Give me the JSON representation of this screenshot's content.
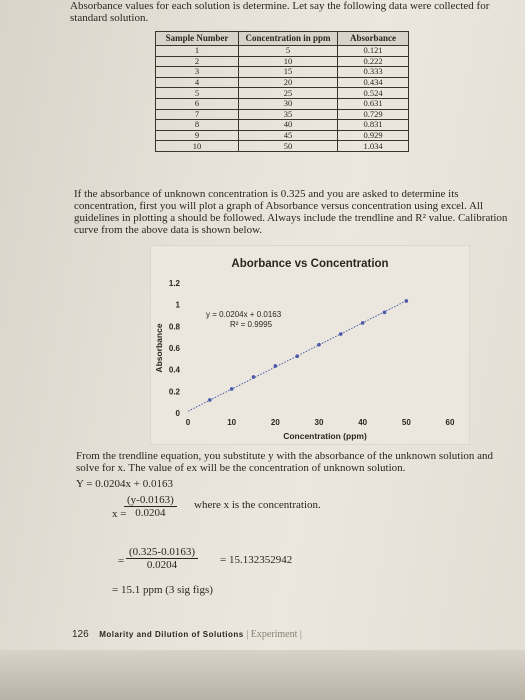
{
  "intro": {
    "line1": "Absorbance values for each solution is determine. Let say the following data were collected for",
    "line2": "standard solution."
  },
  "table": {
    "headers": [
      "Sample Number",
      "Concentration in ppm",
      "Absorbance"
    ],
    "rows": [
      [
        "1",
        "5",
        "0.121"
      ],
      [
        "2",
        "10",
        "0.222"
      ],
      [
        "3",
        "15",
        "0.333"
      ],
      [
        "4",
        "20",
        "0.434"
      ],
      [
        "5",
        "25",
        "0.524"
      ],
      [
        "6",
        "30",
        "0.631"
      ],
      [
        "7",
        "35",
        "0.729"
      ],
      [
        "8",
        "40",
        "0.831"
      ],
      [
        "9",
        "45",
        "0.929"
      ],
      [
        "10",
        "50",
        "1.034"
      ]
    ]
  },
  "paragraph": {
    "line1": "If the absorbance of unknown concentration is 0.325 and you are asked to determine its",
    "line2": "concentration, first you will plot a graph of Absorbance versus concentration using excel. All",
    "line3": "guidelines in plotting a should be followed. Always include the trendline and R² value. Calibration",
    "line4": "curve from the above data is shown below."
  },
  "chart_data": {
    "type": "scatter",
    "title": "Aborbance vs Concentration",
    "xlabel": "Concentration (ppm)",
    "ylabel": "Absorbance",
    "xlim": [
      0,
      60
    ],
    "ylim": [
      0,
      1.2
    ],
    "xticks": [
      "0",
      "10",
      "20",
      "30",
      "40",
      "50",
      "60"
    ],
    "yticks": [
      "0",
      "0.2",
      "0.4",
      "0.6",
      "0.8",
      "1",
      "1.2"
    ],
    "x": [
      5,
      10,
      15,
      20,
      25,
      30,
      35,
      40,
      45,
      50
    ],
    "y": [
      0.121,
      0.222,
      0.333,
      0.434,
      0.524,
      0.631,
      0.729,
      0.831,
      0.929,
      1.034
    ],
    "trendline": {
      "slope": 0.0204,
      "intercept": 0.0163
    },
    "equation": "y = 0.0204x + 0.0163",
    "r2": "R² = 0.9995",
    "colors": {
      "points": "#4a5aa8",
      "trend": "#4a5aa8"
    }
  },
  "after": {
    "line1": "From the trendline equation, you substitute y with the absorbance of the unknown solution and",
    "line2": "solve for x. The value of ex will be the concentration of unknown solution.",
    "equation": "Y = 0.0204x + 0.0163",
    "x_eq": "x =",
    "frac1_num": "(y-0.0163)",
    "frac1_den": "0.0204",
    "where": "where x is the concentration.",
    "eq2": "=",
    "frac2_num": "(0.325-0.0163)",
    "frac2_den": "0.0204",
    "result1": "= 15.132352942",
    "result2": "= 15.1 ppm (3 sig figs)"
  },
  "footer": {
    "page_number": "126",
    "running_title": "Molarity and Dilution of Solutions",
    "section": "| Experiment |"
  }
}
